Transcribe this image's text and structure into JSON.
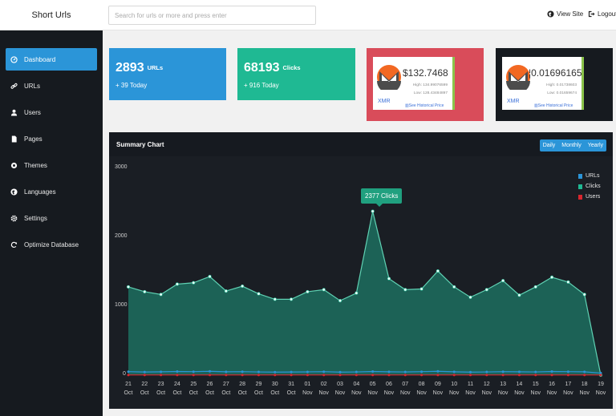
{
  "app": {
    "title": "Short Urls"
  },
  "search": {
    "placeholder": "Search for urls or more and press enter"
  },
  "header": {
    "view_site": "View Site",
    "logout": "Logout"
  },
  "sidebar": {
    "items": [
      {
        "label": "Dashboard",
        "icon": "dashboard-icon",
        "active": true
      },
      {
        "label": "URLs",
        "icon": "link-icon"
      },
      {
        "label": "Users",
        "icon": "user-icon"
      },
      {
        "label": "Pages",
        "icon": "file-icon"
      },
      {
        "label": "Themes",
        "icon": "eye-icon"
      },
      {
        "label": "Languages",
        "icon": "globe-icon"
      },
      {
        "label": "Settings",
        "icon": "gear-icon"
      },
      {
        "label": "Optimize Database",
        "icon": "refresh-icon"
      }
    ]
  },
  "stats": {
    "urls": {
      "value": "2893",
      "label": "URLs",
      "today": "+ 39 Today",
      "color": "#2b95d8"
    },
    "clicks": {
      "value": "68193",
      "label": "Clicks",
      "today": "+ 916 Today",
      "color": "#1fb993"
    }
  },
  "price_widgets": [
    {
      "symbol": "XMR",
      "price": "$132.7468",
      "high": "High: 134.99076599",
      "low": "Low: 128.43484897",
      "history": "See Historical Price",
      "bg": "#d94c5a"
    },
    {
      "symbol": "XMR",
      "price": "¦0.01696165",
      "high": "High: 0.01738603",
      "low": "Low: 0.01659674",
      "history": "See Historical Price",
      "bg": "#161a1f"
    }
  ],
  "chart": {
    "title": "Summary Chart",
    "buttons": [
      "Daily",
      "Monthly",
      "Yearly"
    ],
    "tooltip": "2377 Clicks"
  },
  "chart_data": {
    "type": "area",
    "title": "Summary Chart",
    "categories": [
      "21 Oct",
      "22 Oct",
      "23 Oct",
      "24 Oct",
      "25 Oct",
      "26 Oct",
      "27 Oct",
      "28 Oct",
      "29 Oct",
      "30 Oct",
      "31 Oct",
      "01 Nov",
      "02 Nov",
      "03 Nov",
      "04 Nov",
      "05 Nov",
      "06 Nov",
      "07 Nov",
      "08 Nov",
      "09 Nov",
      "10 Nov",
      "11 Nov",
      "12 Nov",
      "13 Nov",
      "14 Nov",
      "15 Nov",
      "16 Nov",
      "17 Nov",
      "18 Nov",
      "19 Nov"
    ],
    "x_day": [
      "21",
      "22",
      "23",
      "24",
      "25",
      "26",
      "27",
      "28",
      "29",
      "30",
      "31",
      "01",
      "02",
      "03",
      "04",
      "05",
      "06",
      "07",
      "08",
      "09",
      "10",
      "11",
      "12",
      "13",
      "14",
      "15",
      "16",
      "17",
      "18",
      "19"
    ],
    "x_month": [
      "Oct",
      "Oct",
      "Oct",
      "Oct",
      "Oct",
      "Oct",
      "Oct",
      "Oct",
      "Oct",
      "Oct",
      "Oct",
      "Nov",
      "Nov",
      "Nov",
      "Nov",
      "Nov",
      "Nov",
      "Nov",
      "Nov",
      "Nov",
      "Nov",
      "Nov",
      "Nov",
      "Nov",
      "Nov",
      "Nov",
      "Nov",
      "Nov",
      "Nov",
      "Nov"
    ],
    "ylim": [
      0,
      3000
    ],
    "yticks": [
      0,
      1000,
      2000,
      3000
    ],
    "legend": "top-right",
    "series": [
      {
        "name": "URLs",
        "color": "#2b95d8",
        "values": [
          50,
          45,
          48,
          52,
          50,
          55,
          48,
          50,
          46,
          44,
          45,
          47,
          50,
          44,
          46,
          52,
          48,
          46,
          50,
          55,
          48,
          44,
          46,
          50,
          48,
          46,
          52,
          50,
          48,
          30
        ]
      },
      {
        "name": "Clicks",
        "color": "#1fb993",
        "values": [
          1280,
          1210,
          1170,
          1320,
          1340,
          1430,
          1220,
          1290,
          1180,
          1100,
          1100,
          1210,
          1240,
          1080,
          1190,
          2377,
          1400,
          1240,
          1250,
          1510,
          1280,
          1130,
          1240,
          1370,
          1160,
          1280,
          1420,
          1350,
          1170,
          0
        ]
      },
      {
        "name": "Users",
        "color": "#d9262e",
        "values": [
          2,
          2,
          2,
          2,
          2,
          2,
          2,
          2,
          2,
          2,
          2,
          2,
          2,
          2,
          2,
          2,
          2,
          2,
          2,
          2,
          2,
          2,
          2,
          2,
          2,
          2,
          2,
          2,
          2,
          2
        ]
      }
    ]
  }
}
